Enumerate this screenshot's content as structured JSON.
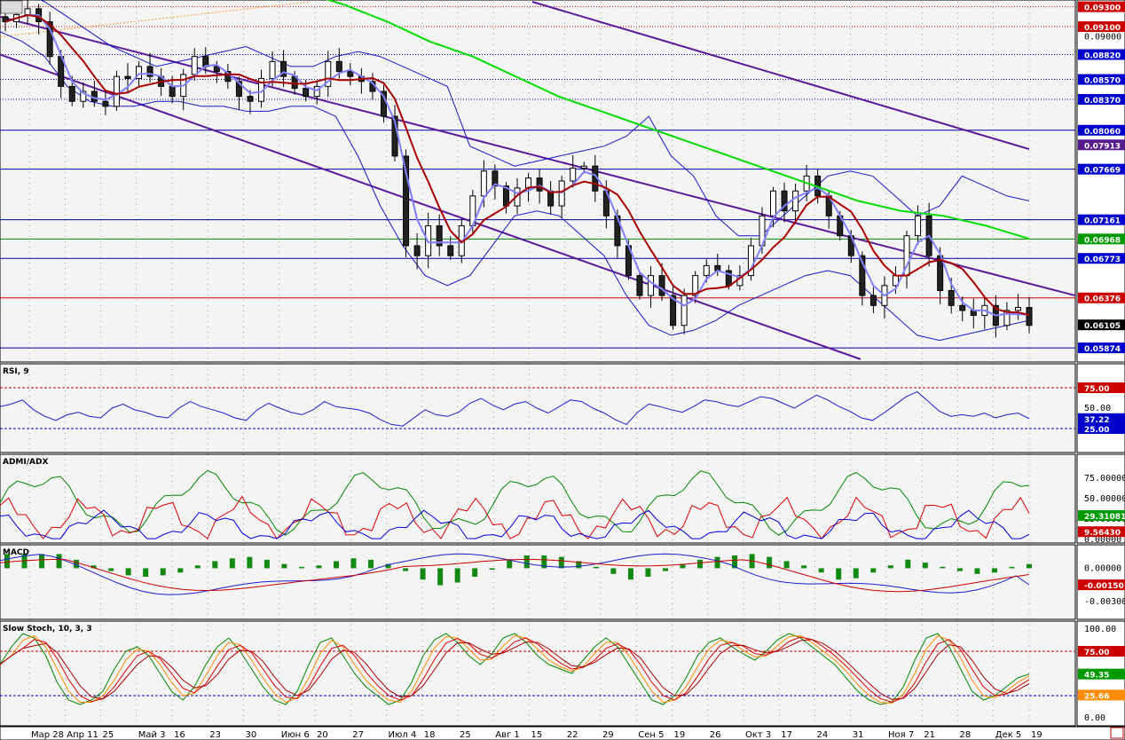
{
  "colors": {
    "background": "#ffffff",
    "plot_bg": "#f4f4f4",
    "candle": "#000000",
    "bollinger": "#1818c8",
    "ma_fast": "#8080ff",
    "ma_slow": "#aa0000",
    "ma_long": "#00dd00",
    "channel": "#5a1a9a",
    "hline_red": "#cc0000",
    "hline_blue": "#0000aa",
    "hline_green": "#008800"
  },
  "price_tags": [
    {
      "text": "0.09300",
      "kind": "red"
    },
    {
      "text": "0.09100",
      "kind": "red"
    },
    {
      "text": "0.09000",
      "kind": "plain"
    },
    {
      "text": "0.08820",
      "kind": "blue"
    },
    {
      "text": "0.08570",
      "kind": "blue"
    },
    {
      "text": "0.08370",
      "kind": "blue"
    },
    {
      "text": "0.08060",
      "kind": "blue"
    },
    {
      "text": "0.07913",
      "kind": "purple"
    },
    {
      "text": "0.07669",
      "kind": "blue"
    },
    {
      "text": "0.07161",
      "kind": "blue"
    },
    {
      "text": "0.06968",
      "kind": "green"
    },
    {
      "text": "0.06773",
      "kind": "blue"
    },
    {
      "text": "0.06376",
      "kind": "red"
    },
    {
      "text": "0.06105",
      "kind": "black"
    },
    {
      "text": "0.05874",
      "kind": "blue"
    }
  ],
  "panels": [
    {
      "id": "rsi",
      "label": "RSI, 9",
      "scale": [
        "75.00",
        "50.00",
        "25.00"
      ],
      "tags": [
        {
          "text": "75.00",
          "kind": "red"
        },
        {
          "text": "37.22",
          "kind": "blue"
        },
        {
          "text": "25.00",
          "kind": "blue"
        }
      ]
    },
    {
      "id": "admi",
      "label": "ADMI/ADX",
      "scale": [
        "75.00000",
        "50.00000",
        "25.00000",
        "0.00000"
      ],
      "tags": [
        {
          "text": "29.31081",
          "kind": "green"
        },
        {
          "text": "9.56430",
          "kind": "red"
        }
      ]
    },
    {
      "id": "macd",
      "label": "MACD",
      "scale": [
        "0.00000",
        "-0.00300"
      ],
      "tags": [
        {
          "text": "-0.00150",
          "kind": "red"
        }
      ]
    },
    {
      "id": "stoch",
      "label": "Slow Stoch, 10, 3, 3",
      "scale": [
        "100.00",
        "50.00",
        "0.00"
      ],
      "tags": [
        {
          "text": "75.00",
          "kind": "red"
        },
        {
          "text": "49.35",
          "kind": "green"
        },
        {
          "text": "25.66",
          "kind": "orange"
        }
      ]
    }
  ],
  "x_labels": [
    "Мар 28",
    "Апр 11",
    "25",
    "Май 3",
    "16",
    "23",
    "30",
    "Июн 6",
    "20",
    "27",
    "Июл 4",
    "18",
    "25",
    "Авг 1",
    "15",
    "22",
    "29",
    "Сен 5",
    "19",
    "26",
    "Окт 3",
    "17",
    "24",
    "31",
    "Ноя 7",
    "21",
    "28",
    "Дек 5",
    "19"
  ],
  "chart_data": {
    "type": "candlestick",
    "y_range": [
      0.0575,
      0.0935
    ],
    "price_path": [
      0.0915,
      0.0922,
      0.0928,
      0.0915,
      0.088,
      0.085,
      0.0835,
      0.0845,
      0.0835,
      0.083,
      0.086,
      0.0858,
      0.087,
      0.086,
      0.085,
      0.084,
      0.0862,
      0.088,
      0.087,
      0.0865,
      0.0855,
      0.084,
      0.0835,
      0.0858,
      0.0875,
      0.086,
      0.0848,
      0.084,
      0.085,
      0.0875,
      0.0865,
      0.086,
      0.0855,
      0.0845,
      0.082,
      0.078,
      0.069,
      0.068,
      0.071,
      0.069,
      0.068,
      0.071,
      0.074,
      0.0765,
      0.075,
      0.073,
      0.0748,
      0.0758,
      0.0745,
      0.073,
      0.0755,
      0.0768,
      0.077,
      0.0745,
      0.072,
      0.069,
      0.066,
      0.064,
      0.066,
      0.064,
      0.061,
      0.064,
      0.066,
      0.067,
      0.0665,
      0.065,
      0.066,
      0.069,
      0.072,
      0.0745,
      0.0725,
      0.0745,
      0.076,
      0.074,
      0.072,
      0.07,
      0.068,
      0.064,
      0.063,
      0.065,
      0.066,
      0.07,
      0.072,
      0.068,
      0.0645,
      0.063,
      0.0625,
      0.062,
      0.063,
      0.061,
      0.0625,
      0.0628,
      0.061
    ],
    "bollinger_upper": [
      0.095,
      0.0945,
      0.0935,
      0.092,
      0.0905,
      0.089,
      0.088,
      0.087,
      0.0875,
      0.088,
      0.0885,
      0.089,
      0.088,
      0.087,
      0.087,
      0.088,
      0.0885,
      0.088,
      0.087,
      0.086,
      0.085,
      0.079,
      0.078,
      0.077,
      0.0775,
      0.078,
      0.0785,
      0.079,
      0.08,
      0.082,
      0.078,
      0.076,
      0.072,
      0.07,
      0.07,
      0.072,
      0.074,
      0.076,
      0.0765,
      0.076,
      0.074,
      0.072,
      0.073,
      0.076,
      0.075,
      0.074,
      0.0735
    ],
    "bollinger_lower": [
      0.0905,
      0.0895,
      0.088,
      0.085,
      0.0835,
      0.083,
      0.083,
      0.0835,
      0.0835,
      0.083,
      0.083,
      0.0825,
      0.0825,
      0.083,
      0.083,
      0.082,
      0.078,
      0.073,
      0.069,
      0.066,
      0.065,
      0.066,
      0.069,
      0.072,
      0.0725,
      0.072,
      0.07,
      0.068,
      0.064,
      0.061,
      0.06,
      0.0605,
      0.0615,
      0.063,
      0.064,
      0.065,
      0.066,
      0.0665,
      0.066,
      0.064,
      0.062,
      0.06,
      0.0595,
      0.06,
      0.0605,
      0.061,
      0.0615
    ],
    "rsi": [
      52,
      55,
      60,
      48,
      40,
      35,
      42,
      45,
      40,
      38,
      50,
      55,
      48,
      45,
      40,
      38,
      50,
      58,
      52,
      48,
      44,
      38,
      35,
      48,
      56,
      50,
      45,
      42,
      48,
      58,
      52,
      50,
      48,
      44,
      36,
      30,
      28,
      38,
      48,
      42,
      40,
      45,
      56,
      62,
      54,
      48,
      55,
      58,
      50,
      44,
      52,
      60,
      58,
      50,
      44,
      36,
      30,
      45,
      55,
      52,
      48,
      45,
      52,
      60,
      58,
      54,
      52,
      58,
      64,
      62,
      56,
      50,
      58,
      66,
      60,
      52,
      46,
      38,
      35,
      44,
      54,
      64,
      70,
      58,
      46,
      40,
      42,
      40,
      44,
      38,
      42,
      44,
      37.22
    ],
    "stoch_k": [
      60,
      80,
      95,
      90,
      70,
      40,
      20,
      15,
      20,
      30,
      55,
      75,
      80,
      70,
      50,
      30,
      20,
      35,
      60,
      80,
      90,
      75,
      55,
      35,
      20,
      15,
      30,
      60,
      85,
      90,
      70,
      50,
      35,
      25,
      15,
      20,
      40,
      70,
      88,
      95,
      85,
      70,
      60,
      72,
      90,
      95,
      85,
      70,
      60,
      55,
      50,
      65,
      80,
      90,
      80,
      60,
      40,
      20,
      15,
      25,
      45,
      70,
      85,
      90,
      80,
      72,
      65,
      75,
      88,
      95,
      90,
      80,
      70,
      60,
      45,
      30,
      20,
      15,
      18,
      35,
      65,
      90,
      95,
      80,
      55,
      30,
      20,
      25,
      35,
      45,
      49.35
    ],
    "macd_hist": [
      1,
      1,
      1,
      1,
      0.6,
      0.2,
      -0.2,
      -0.5,
      -0.6,
      -0.5,
      -0.3,
      0.2,
      0.5,
      0.7,
      0.8,
      0.6,
      0.3,
      0.1,
      0.2,
      0.5,
      0.7,
      0.6,
      0.3,
      -0.2,
      -0.8,
      -1.2,
      -1.0,
      -0.6,
      -0.1,
      0.6,
      0.9,
      0.9,
      0.8,
      0.5,
      0.1,
      -0.4,
      -0.8,
      -0.6,
      -0.2,
      0.3,
      0.6,
      0.8,
      0.9,
      1.0,
      0.8,
      0.5,
      0.2,
      -0.3,
      -0.8,
      -0.7,
      -0.3,
      0.2,
      0.6,
      0.4,
      0.1,
      -0.2,
      -0.4,
      -0.3,
      0.1,
      0.3
    ],
    "macd_line_end": -0.0015,
    "rsi_last": 37.22,
    "adx_last": 29.31081,
    "admi_last": 9.5643,
    "stoch_d_last": 25.66
  }
}
